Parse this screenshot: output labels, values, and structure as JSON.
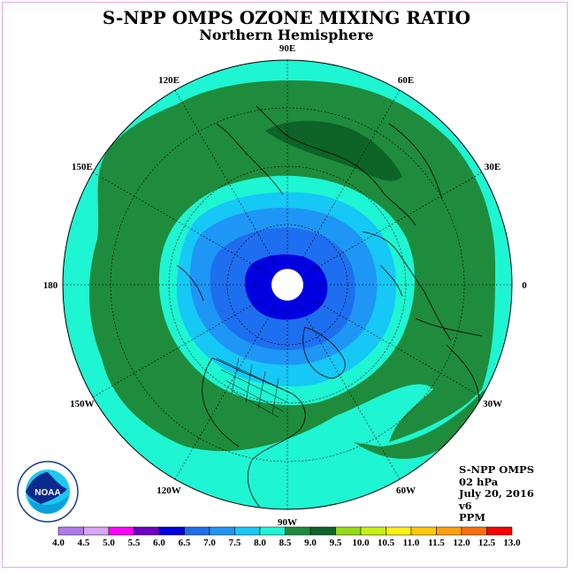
{
  "header": {
    "title": "S-NPP OMPS OZONE MIXING RATIO",
    "subtitle": "Northern Hemisphere"
  },
  "map": {
    "projection": "north-polar-stereographic",
    "longitude_labels": [
      "90E",
      "60E",
      "30E",
      "0",
      "30W",
      "60W",
      "90W",
      "120W",
      "150W",
      "180",
      "150E",
      "120E"
    ]
  },
  "info": {
    "lines": [
      "S-NPP OMPS",
      "02 hPa",
      "July 20, 2016",
      "v6",
      "PPM"
    ]
  },
  "logo": {
    "text": "NOAA",
    "ring_text": "NATIONAL OCEANIC AND ATMOSPHERIC ADMINISTRATION · U.S. DEPARTMENT OF COMMERCE"
  },
  "colorbar": {
    "labels": [
      "4.0",
      "4.5",
      "5.0",
      "5.5",
      "6.0",
      "6.5",
      "7.0",
      "7.5",
      "8.0",
      "8.5",
      "9.0",
      "9.5",
      "10.0",
      "10.5",
      "11.0",
      "11.5",
      "12.0",
      "12.5",
      "13.0"
    ],
    "colors": [
      "#b07ae8",
      "#d8a6f2",
      "#ff00ff",
      "#6e00c8",
      "#0000e0",
      "#1e6ef0",
      "#1e96f5",
      "#16c8f5",
      "#1ef5d2",
      "#1e8c3c",
      "#0e6428",
      "#96dc14",
      "#c8f014",
      "#fff014",
      "#ffc80a",
      "#ffa00a",
      "#ff6e0a",
      "#ff0000",
      "#a05a32"
    ]
  },
  "colors": {
    "level_8_0": "#1ef5d2",
    "level_8_5": "#1e8c3c",
    "level_9_0": "#0e6428",
    "level_7_5": "#16c8f5",
    "level_7_0": "#1e96f5",
    "level_6_5": "#1e6ef0",
    "level_6_0": "#0000e0",
    "frame": "#e6a8e6"
  }
}
